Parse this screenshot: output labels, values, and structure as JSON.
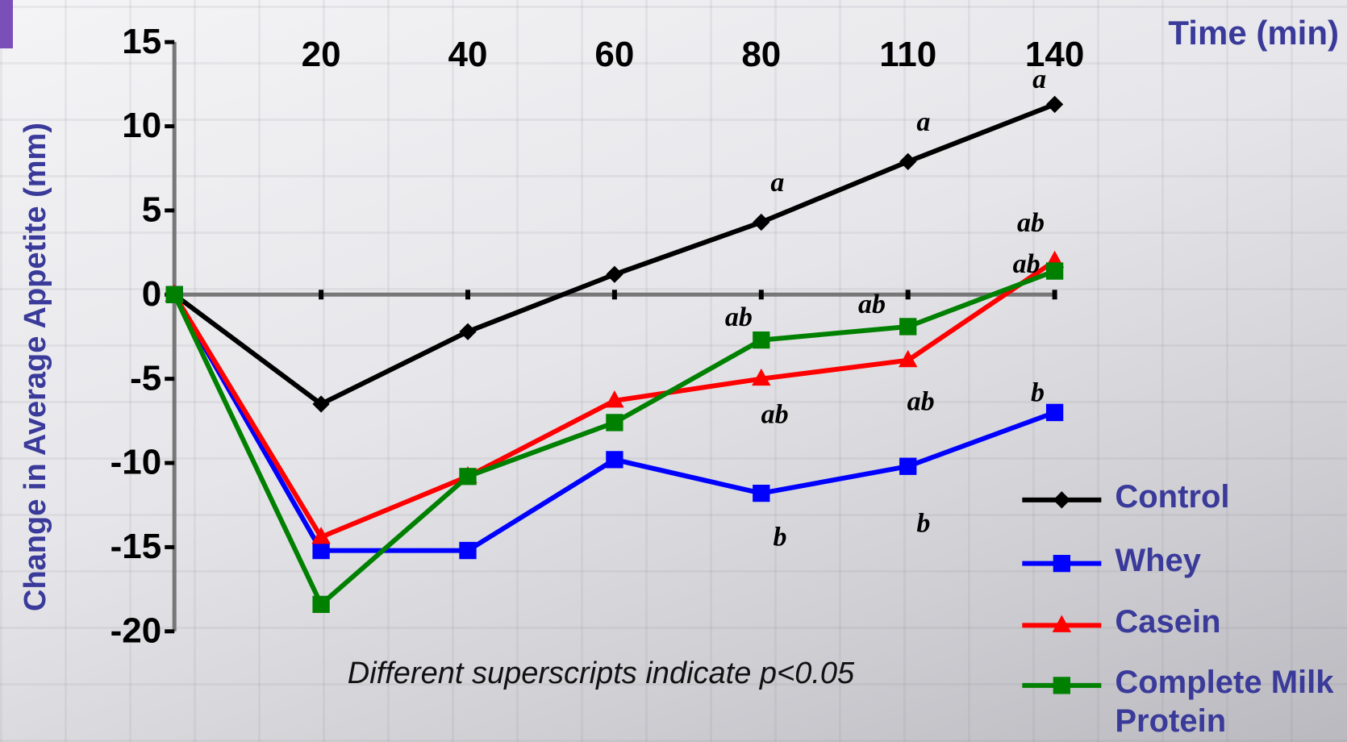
{
  "chart_data": {
    "type": "line",
    "xlabel": "Time (min)",
    "ylabel": "Change in Average Appetite (mm)",
    "note": "Different superscripts indicate p<0.05",
    "categories": [
      null,
      "20",
      "40",
      "60",
      "80",
      "110",
      "140"
    ],
    "ylim": [
      -20,
      15
    ],
    "yticks": [
      -20,
      -15,
      -10,
      -5,
      0,
      5,
      10,
      15
    ],
    "series": [
      {
        "name": "Control",
        "color": "#000000",
        "marker": "diamond",
        "values": [
          0,
          -6.5,
          -2.2,
          1.2,
          4.3,
          7.9,
          11.3
        ]
      },
      {
        "name": "Whey",
        "color": "#0000ff",
        "marker": "square",
        "values": [
          0,
          -15.2,
          -15.2,
          -9.8,
          -11.8,
          -10.2,
          -7.0
        ]
      },
      {
        "name": "Casein",
        "color": "#ff0000",
        "marker": "triangle",
        "values": [
          0,
          -14.4,
          -10.8,
          -6.3,
          -5.0,
          -3.9,
          2.0
        ]
      },
      {
        "name": "Complete Milk Protein",
        "color": "#008000",
        "marker": "square",
        "values": [
          0,
          -18.4,
          -10.8,
          -7.6,
          -2.7,
          -1.9,
          1.4
        ]
      }
    ],
    "annotations": [
      "a",
      "a",
      "a",
      "ab",
      "ab",
      "ab",
      "ab",
      "ab",
      "ab",
      "b",
      "b",
      "b"
    ]
  }
}
